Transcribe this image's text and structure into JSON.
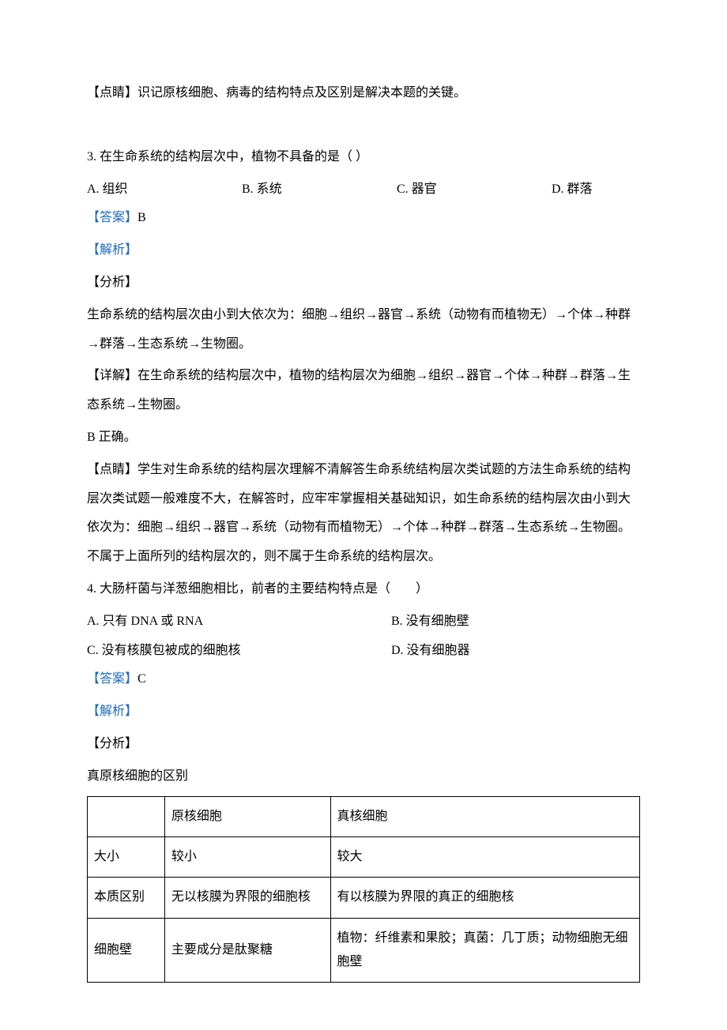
{
  "tip1": "【点睛】识记原核细胞、病毒的结构特点及区别是解决本题的关键。",
  "q3": {
    "stem": "3. 在生命系统的结构层次中，植物不具备的是（ ）",
    "optA": "A.  组织",
    "optB": "B.  系统",
    "optC": "C.  器官",
    "optD": "D.  群落",
    "answerLabel": "【答案】",
    "answerValue": "B",
    "explainLabel": "【解析】",
    "analysisLabel": "【分析】",
    "analysisText": "生命系统的结构层次由小到大依次为：细胞→组织→器官→系统（动物有而植物无）→个体→种群→群落→生态系统→生物圈。",
    "detailText": "【详解】在生命系统的结构层次中，植物的结构层次为细胞→组织→器官→个体→种群→群落→生态系统→生物圈。",
    "bcorrect": "B 正确。",
    "tip": "【点睛】学生对生命系统的结构层次理解不清解答生命系统结构层次类试题的方法生命系统的结构层次类试题一般难度不大，在解答时，应牢牢掌握相关基础知识，如生命系统的结构层次由小到大依次为：细胞→组织→器官→系统（动物有而植物无）→个体→种群→群落→生态系统→生物圈。不属于上面所列的结构层次的，则不属于生命系统的结构层次。"
  },
  "q4": {
    "stem": "4. 大肠杆菌与洋葱细胞相比，前者的主要结构特点是（　　）",
    "optA": "A.  只有 DNA 或 RNA",
    "optB": "B.  没有细胞壁",
    "optC": "C.  没有核膜包被成的细胞核",
    "optD": "D.  没有细胞器",
    "answerLabel": "【答案】",
    "answerValue": "C",
    "explainLabel": "【解析】",
    "analysisLabel": "【分析】",
    "tableTitle": "真原核细胞的区别",
    "table": {
      "headers": [
        "",
        "原核细胞",
        "真核细胞"
      ],
      "rows": [
        [
          "大小",
          "较小",
          "较大"
        ],
        [
          "本质区别",
          "无以核膜为界限的细胞核",
          "有以核膜为界限的真正的细胞核"
        ],
        [
          "细胞壁",
          "主要成分是肽聚糖",
          "植物：纤维素和果胶；真菌：几丁质；动物细胞无细胞壁"
        ]
      ]
    }
  }
}
